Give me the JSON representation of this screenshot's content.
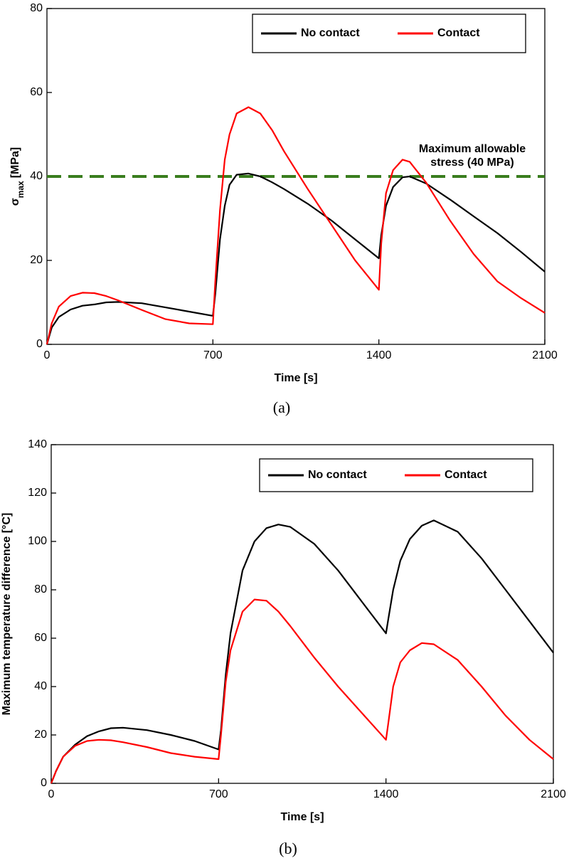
{
  "chart_data": [
    {
      "type": "line",
      "xlabel": "Time [s]",
      "ylabel": [
        "σ",
        "max",
        "[MPa]"
      ],
      "caption": "(a)",
      "xlim": [
        0,
        2100
      ],
      "xticks": [
        0,
        700,
        1400,
        2100
      ],
      "ylim": [
        0,
        80
      ],
      "yticks": [
        0,
        20,
        40,
        60,
        80
      ],
      "x": [
        0,
        20,
        50,
        100,
        150,
        200,
        250,
        300,
        400,
        500,
        600,
        700,
        710,
        730,
        750,
        770,
        800,
        850,
        900,
        950,
        1000,
        1100,
        1200,
        1300,
        1400,
        1410,
        1430,
        1460,
        1500,
        1530,
        1600,
        1700,
        1800,
        1900,
        2000,
        2100
      ],
      "series": [
        {
          "name": "No contact",
          "color": "#000000",
          "values": [
            0,
            4,
            6.5,
            8.3,
            9.2,
            9.5,
            10,
            10.1,
            9.8,
            8.8,
            7.8,
            6.8,
            12,
            25,
            33,
            38,
            40.4,
            40.7,
            40,
            38.6,
            37,
            33.5,
            29.5,
            25,
            20.5,
            26,
            33,
            37.5,
            39.8,
            40,
            38.3,
            34.5,
            30.5,
            26.5,
            22,
            17.3
          ]
        },
        {
          "name": "Contact",
          "color": "#ff0000",
          "values": [
            0,
            5,
            9,
            11.5,
            12.3,
            12.2,
            11.5,
            10.5,
            8.2,
            6,
            5,
            4.8,
            15,
            32,
            44,
            50,
            55,
            56.5,
            55,
            51,
            46,
            37,
            28.5,
            20,
            13,
            24,
            36,
            41.5,
            44,
            43.5,
            38.5,
            29.5,
            21.5,
            15,
            11,
            7.5
          ]
        }
      ],
      "hline": {
        "value": 40,
        "color": "#3a7d1e",
        "dashed": true
      },
      "annotation": [
        "Maximum allowable",
        "stress (40 MPa)"
      ],
      "legend": "upper right"
    },
    {
      "type": "line",
      "xlabel": "Time [s]",
      "ylabel": [
        "Maximum temperature difference [°C]"
      ],
      "caption": "(b)",
      "xlim": [
        0,
        2100
      ],
      "xticks": [
        0,
        700,
        1400,
        2100
      ],
      "ylim": [
        0,
        140
      ],
      "yticks": [
        0,
        20,
        40,
        60,
        80,
        100,
        120,
        140
      ],
      "x": [
        0,
        20,
        50,
        100,
        150,
        200,
        250,
        300,
        400,
        500,
        600,
        700,
        710,
        730,
        750,
        800,
        850,
        900,
        950,
        1000,
        1100,
        1200,
        1300,
        1400,
        1410,
        1430,
        1460,
        1500,
        1550,
        1600,
        1700,
        1800,
        1900,
        2000,
        2100
      ],
      "series": [
        {
          "name": "No contact",
          "color": "#000000",
          "values": [
            0,
            5,
            11,
            16,
            19.5,
            21.5,
            22.8,
            23,
            22,
            20,
            17.5,
            14,
            22,
            45,
            62,
            88,
            100,
            105.5,
            107,
            106,
            99,
            88,
            75,
            62,
            68,
            80,
            92,
            101,
            106.5,
            108.7,
            104,
            93,
            80,
            67,
            54
          ]
        },
        {
          "name": "Contact",
          "color": "#ff0000",
          "values": [
            0,
            5,
            11,
            15.5,
            17.5,
            18,
            17.8,
            17,
            15,
            12.5,
            11,
            10,
            20,
            42,
            55,
            71,
            76,
            75.5,
            71,
            65,
            52,
            40,
            29,
            18,
            25,
            40,
            50,
            55,
            58,
            57.5,
            51,
            40,
            28,
            18,
            10
          ]
        }
      ],
      "legend": "upper right"
    }
  ]
}
